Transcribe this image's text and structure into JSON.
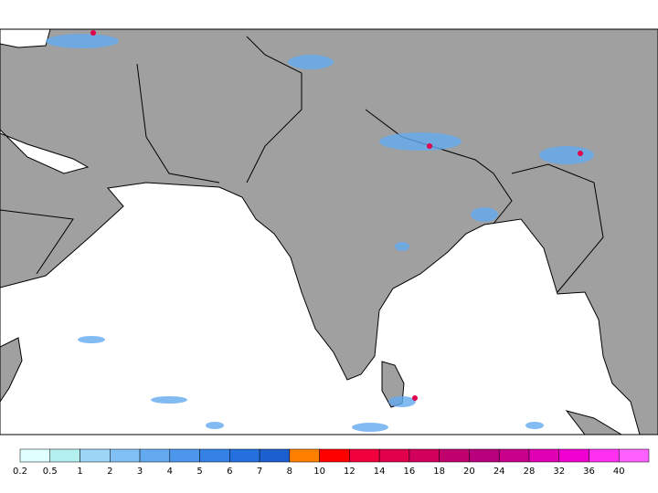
{
  "legend": {
    "labels": [
      0.2,
      0.5,
      1,
      2,
      3,
      4,
      5,
      6,
      7,
      8,
      10,
      12,
      14,
      16,
      18,
      20,
      24,
      28,
      32,
      36,
      40
    ],
    "colors": [
      "#e0ffff",
      "#b4f0f0",
      "#9cd6f4",
      "#80c0f4",
      "#64aaf0",
      "#4c96ec",
      "#3482e6",
      "#2470de",
      "#1c60d0",
      "#ff8000",
      "#ff0000",
      "#f0003c",
      "#e0004c",
      "#d0005c",
      "#c0006c",
      "#b8007c",
      "#c8008c",
      "#e000b4",
      "#f000d0",
      "#ff30f0",
      "#ff60ff"
    ]
  }
}
